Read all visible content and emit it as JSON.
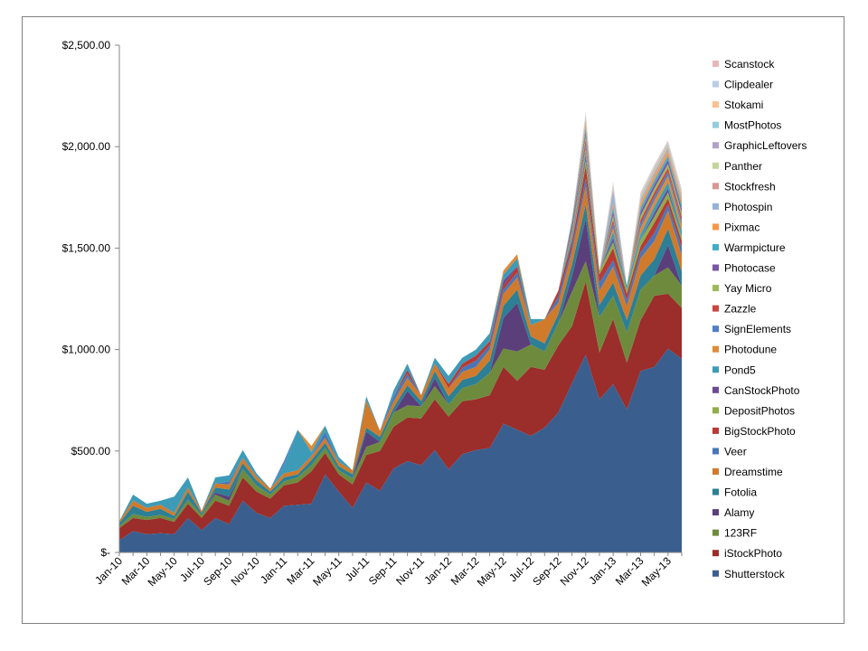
{
  "chart_data": {
    "type": "area",
    "stacked": true,
    "ylim": [
      0,
      2500
    ],
    "yticks": [
      "$-",
      "$500.00",
      "$1,000.00",
      "$1,500.00",
      "$2,000.00",
      "$2,500.00"
    ],
    "ytick_values": [
      0,
      500,
      1000,
      1500,
      2000,
      2500
    ],
    "x": [
      "Jan-10",
      "Feb-10",
      "Mar-10",
      "Apr-10",
      "May-10",
      "Jun-10",
      "Jul-10",
      "Aug-10",
      "Sep-10",
      "Oct-10",
      "Nov-10",
      "Dec-10",
      "Jan-11",
      "Feb-11",
      "Mar-11",
      "Apr-11",
      "May-11",
      "Jun-11",
      "Jul-11",
      "Aug-11",
      "Sep-11",
      "Oct-11",
      "Nov-11",
      "Dec-11",
      "Jan-12",
      "Feb-12",
      "Mar-12",
      "Apr-12",
      "May-12",
      "Jun-12",
      "Jul-12",
      "Aug-12",
      "Sep-12",
      "Oct-12",
      "Nov-12",
      "Dec-12",
      "Jan-13",
      "Feb-13",
      "Mar-13",
      "Apr-13",
      "May-13",
      "Jun-13"
    ],
    "xtick_labels": [
      "Jan-10",
      "Mar-10",
      "May-10",
      "Jul-10",
      "Sep-10",
      "Nov-10",
      "Jan-11",
      "Mar-11",
      "May-11",
      "Jul-11",
      "Sep-11",
      "Nov-11",
      "Jan-12",
      "Mar-12",
      "May-12",
      "Jul-12",
      "Sep-12",
      "Nov-12",
      "Jan-13",
      "Mar-13",
      "May-13"
    ],
    "legend_position": "right",
    "grid": false,
    "series": [
      {
        "name": "Shutterstock",
        "color": "#3a5f8f",
        "values": [
          60,
          105,
          90,
          95,
          90,
          170,
          110,
          170,
          140,
          255,
          195,
          170,
          230,
          235,
          240,
          385,
          300,
          220,
          345,
          305,
          415,
          450,
          430,
          505,
          410,
          485,
          505,
          515,
          635,
          605,
          575,
          615,
          690,
          835,
          975,
          755,
          830,
          705,
          895,
          915,
          1005,
          955
        ]
      },
      {
        "name": "iStockPhoto",
        "color": "#9b2d2a",
        "values": [
          60,
          65,
          70,
          75,
          60,
          70,
          60,
          85,
          90,
          115,
          105,
          95,
          100,
          110,
          160,
          105,
          85,
          115,
          135,
          195,
          205,
          215,
          230,
          250,
          260,
          260,
          250,
          260,
          280,
          240,
          340,
          285,
          330,
          280,
          360,
          230,
          320,
          230,
          250,
          350,
          270,
          250
        ]
      },
      {
        "name": "123RF",
        "color": "#6e8b3d",
        "values": [
          10,
          20,
          15,
          15,
          15,
          20,
          15,
          30,
          25,
          40,
          30,
          20,
          20,
          25,
          30,
          25,
          20,
          30,
          40,
          45,
          70,
          60,
          60,
          65,
          60,
          65,
          75,
          110,
          90,
          145,
          110,
          90,
          110,
          170,
          100,
          175,
          115,
          150,
          150,
          100,
          130,
          110
        ]
      },
      {
        "name": "Alamy",
        "color": "#5b3f7a",
        "values": [
          0,
          0,
          0,
          0,
          0,
          0,
          0,
          10,
          20,
          0,
          0,
          0,
          0,
          0,
          0,
          0,
          0,
          0,
          75,
          0,
          0,
          70,
          0,
          40,
          0,
          0,
          0,
          0,
          150,
          240,
          0,
          0,
          0,
          75,
          210,
          0,
          0,
          0,
          0,
          0,
          110,
          0
        ]
      },
      {
        "name": "Fotolia",
        "color": "#2c7f95",
        "values": [
          15,
          40,
          25,
          30,
          15,
          40,
          10,
          25,
          35,
          30,
          25,
          15,
          20,
          15,
          25,
          25,
          20,
          20,
          20,
          25,
          25,
          30,
          25,
          35,
          40,
          40,
          40,
          60,
          60,
          65,
          40,
          40,
          45,
          60,
          70,
          60,
          65,
          60,
          70,
          80,
          80,
          70
        ]
      },
      {
        "name": "Dreamstime",
        "color": "#d07a2c",
        "values": [
          10,
          25,
          20,
          20,
          15,
          20,
          10,
          20,
          25,
          25,
          20,
          15,
          20,
          20,
          20,
          25,
          20,
          20,
          135,
          30,
          30,
          35,
          30,
          35,
          40,
          40,
          45,
          55,
          60,
          60,
          55,
          120,
          55,
          60,
          90,
          70,
          80,
          70,
          85,
          90,
          90,
          80
        ]
      },
      {
        "name": "Veer",
        "color": "#4a76b8",
        "values": [
          0,
          0,
          0,
          0,
          0,
          0,
          0,
          0,
          15,
          0,
          0,
          0,
          0,
          0,
          0,
          30,
          0,
          0,
          0,
          0,
          25,
          20,
          0,
          0,
          0,
          20,
          30,
          20,
          20,
          25,
          0,
          0,
          30,
          20,
          40,
          40,
          30,
          30,
          30,
          40,
          30,
          40
        ]
      },
      {
        "name": "BigStockPhoto",
        "color": "#b83a34",
        "values": [
          0,
          0,
          0,
          0,
          0,
          0,
          0,
          0,
          0,
          0,
          0,
          0,
          0,
          0,
          0,
          0,
          0,
          0,
          0,
          0,
          0,
          20,
          0,
          0,
          20,
          20,
          25,
          20,
          20,
          30,
          0,
          0,
          30,
          30,
          60,
          40,
          60,
          30,
          30,
          50,
          30,
          30
        ]
      },
      {
        "name": "DepositPhotos",
        "color": "#8fad48",
        "values": [
          0,
          0,
          0,
          0,
          0,
          0,
          0,
          0,
          0,
          0,
          0,
          0,
          0,
          0,
          0,
          0,
          0,
          0,
          0,
          0,
          0,
          0,
          0,
          0,
          0,
          0,
          0,
          0,
          0,
          0,
          0,
          0,
          0,
          0,
          30,
          20,
          30,
          20,
          30,
          30,
          30,
          20
        ]
      },
      {
        "name": "CanStockPhoto",
        "color": "#6a4b93",
        "values": [
          0,
          0,
          0,
          0,
          0,
          0,
          0,
          0,
          0,
          0,
          0,
          0,
          0,
          0,
          0,
          0,
          0,
          0,
          0,
          0,
          0,
          0,
          0,
          0,
          0,
          0,
          0,
          0,
          25,
          0,
          0,
          0,
          0,
          0,
          20,
          0,
          20,
          0,
          0,
          20,
          20,
          0
        ]
      },
      {
        "name": "Pond5",
        "color": "#3e9bb8",
        "values": [
          0,
          30,
          20,
          20,
          80,
          50,
          0,
          30,
          30,
          40,
          15,
          0,
          40,
          200,
          20,
          30,
          25,
          0,
          20,
          0,
          30,
          30,
          0,
          30,
          40,
          30,
          30,
          40,
          30,
          40,
          30,
          0,
          0,
          30,
          20,
          0,
          30,
          20,
          30,
          30,
          30,
          30
        ]
      },
      {
        "name": "Photodune",
        "color": "#e08a37",
        "values": [
          0,
          0,
          0,
          0,
          0,
          0,
          0,
          0,
          0,
          0,
          0,
          0,
          0,
          0,
          30,
          0,
          0,
          0,
          0,
          0,
          0,
          0,
          0,
          0,
          0,
          0,
          0,
          0,
          20,
          20,
          0,
          0,
          0,
          20,
          20,
          0,
          20,
          0,
          30,
          30,
          30,
          30
        ]
      },
      {
        "name": "SignElements",
        "color": "#4f7fc4",
        "values": [
          0,
          0,
          0,
          0,
          0,
          0,
          0,
          0,
          0,
          0,
          0,
          0,
          20,
          0,
          0,
          0,
          0,
          0,
          0,
          0,
          0,
          0,
          0,
          0,
          0,
          0,
          0,
          0,
          0,
          0,
          0,
          0,
          0,
          20,
          20,
          0,
          20,
          0,
          20,
          20,
          20,
          20
        ]
      },
      {
        "name": "Zazzle",
        "color": "#c9463f",
        "values": [
          0,
          0,
          0,
          0,
          0,
          0,
          0,
          0,
          0,
          0,
          0,
          0,
          0,
          0,
          0,
          0,
          0,
          0,
          0,
          0,
          0,
          0,
          0,
          0,
          0,
          0,
          0,
          0,
          0,
          0,
          0,
          0,
          0,
          20,
          20,
          0,
          20,
          0,
          20,
          20,
          20,
          20
        ]
      },
      {
        "name": "Yay Micro",
        "color": "#9bbb59",
        "values": [
          0,
          0,
          0,
          0,
          0,
          0,
          0,
          0,
          0,
          0,
          0,
          0,
          0,
          0,
          0,
          0,
          0,
          0,
          0,
          0,
          0,
          0,
          0,
          0,
          0,
          0,
          0,
          0,
          0,
          0,
          0,
          0,
          0,
          0,
          20,
          0,
          20,
          0,
          20,
          20,
          20,
          20
        ]
      },
      {
        "name": "Photocase",
        "color": "#7b56a8",
        "values": [
          0,
          0,
          0,
          0,
          0,
          0,
          0,
          0,
          0,
          0,
          0,
          0,
          0,
          0,
          0,
          0,
          0,
          0,
          0,
          0,
          0,
          0,
          0,
          0,
          0,
          0,
          0,
          0,
          0,
          0,
          0,
          0,
          0,
          0,
          20,
          0,
          20,
          0,
          20,
          20,
          20,
          20
        ]
      },
      {
        "name": "Warmpicture",
        "color": "#43acc9",
        "values": [
          0,
          0,
          0,
          0,
          0,
          0,
          0,
          0,
          0,
          0,
          0,
          0,
          0,
          0,
          0,
          0,
          0,
          0,
          0,
          0,
          0,
          0,
          0,
          0,
          0,
          0,
          0,
          0,
          0,
          0,
          0,
          0,
          0,
          20,
          20,
          0,
          20,
          0,
          20,
          20,
          20,
          20
        ]
      },
      {
        "name": "Pixmac",
        "color": "#f79646",
        "values": [
          0,
          0,
          0,
          0,
          0,
          0,
          0,
          0,
          0,
          0,
          0,
          0,
          0,
          0,
          0,
          0,
          0,
          0,
          0,
          0,
          0,
          0,
          0,
          0,
          0,
          0,
          0,
          0,
          0,
          0,
          0,
          0,
          0,
          0,
          20,
          0,
          20,
          0,
          20,
          20,
          20,
          20
        ]
      },
      {
        "name": "Photospin",
        "color": "#95b3d7",
        "values": [
          0,
          0,
          0,
          0,
          0,
          0,
          0,
          0,
          0,
          0,
          0,
          0,
          0,
          0,
          0,
          0,
          0,
          0,
          0,
          0,
          0,
          0,
          0,
          0,
          0,
          0,
          0,
          0,
          0,
          0,
          0,
          0,
          0,
          0,
          10,
          0,
          60,
          0,
          10,
          10,
          10,
          10
        ]
      },
      {
        "name": "Stockfresh",
        "color": "#d99694",
        "values": [
          0,
          0,
          0,
          0,
          0,
          0,
          0,
          0,
          0,
          0,
          0,
          0,
          0,
          0,
          0,
          0,
          0,
          0,
          0,
          0,
          0,
          0,
          0,
          0,
          0,
          0,
          0,
          0,
          0,
          0,
          0,
          0,
          0,
          0,
          10,
          0,
          10,
          0,
          10,
          10,
          10,
          10
        ]
      },
      {
        "name": "Panther",
        "color": "#c3d69b",
        "values": [
          0,
          0,
          0,
          0,
          0,
          0,
          0,
          0,
          0,
          0,
          0,
          0,
          0,
          0,
          0,
          0,
          0,
          0,
          0,
          0,
          0,
          0,
          0,
          0,
          0,
          0,
          0,
          0,
          0,
          0,
          0,
          0,
          0,
          0,
          10,
          0,
          10,
          0,
          10,
          10,
          10,
          10
        ]
      },
      {
        "name": "GraphicLeftovers",
        "color": "#b3a2c7",
        "values": [
          0,
          0,
          0,
          0,
          0,
          0,
          0,
          0,
          0,
          0,
          0,
          0,
          0,
          0,
          0,
          0,
          0,
          0,
          0,
          0,
          0,
          0,
          0,
          0,
          0,
          0,
          0,
          0,
          0,
          0,
          0,
          0,
          0,
          0,
          5,
          0,
          5,
          0,
          5,
          5,
          5,
          5
        ]
      },
      {
        "name": "MostPhotos",
        "color": "#93cddd",
        "values": [
          0,
          0,
          0,
          0,
          0,
          0,
          0,
          0,
          0,
          0,
          0,
          0,
          0,
          0,
          0,
          0,
          0,
          0,
          0,
          0,
          0,
          0,
          0,
          0,
          0,
          0,
          0,
          0,
          0,
          0,
          0,
          0,
          0,
          0,
          5,
          0,
          5,
          0,
          5,
          5,
          5,
          5
        ]
      },
      {
        "name": "Stokami",
        "color": "#fac08f",
        "values": [
          0,
          0,
          0,
          0,
          0,
          0,
          0,
          0,
          0,
          0,
          0,
          0,
          0,
          0,
          0,
          0,
          0,
          0,
          0,
          0,
          0,
          0,
          0,
          0,
          0,
          0,
          0,
          0,
          0,
          0,
          0,
          0,
          0,
          0,
          5,
          0,
          5,
          0,
          5,
          5,
          5,
          5
        ]
      },
      {
        "name": "Clipdealer",
        "color": "#b9cde5",
        "values": [
          0,
          0,
          0,
          0,
          0,
          0,
          0,
          0,
          0,
          0,
          0,
          0,
          0,
          0,
          0,
          0,
          0,
          0,
          0,
          0,
          0,
          0,
          0,
          0,
          0,
          0,
          0,
          0,
          0,
          0,
          0,
          0,
          0,
          0,
          5,
          0,
          5,
          0,
          5,
          5,
          5,
          5
        ]
      },
      {
        "name": "Scanstock",
        "color": "#e6b9b8",
        "values": [
          0,
          0,
          0,
          0,
          0,
          0,
          0,
          0,
          0,
          0,
          0,
          0,
          0,
          0,
          0,
          0,
          0,
          0,
          0,
          0,
          0,
          0,
          0,
          0,
          0,
          0,
          0,
          0,
          0,
          0,
          0,
          0,
          0,
          0,
          5,
          0,
          5,
          0,
          5,
          5,
          5,
          5
        ]
      }
    ]
  }
}
